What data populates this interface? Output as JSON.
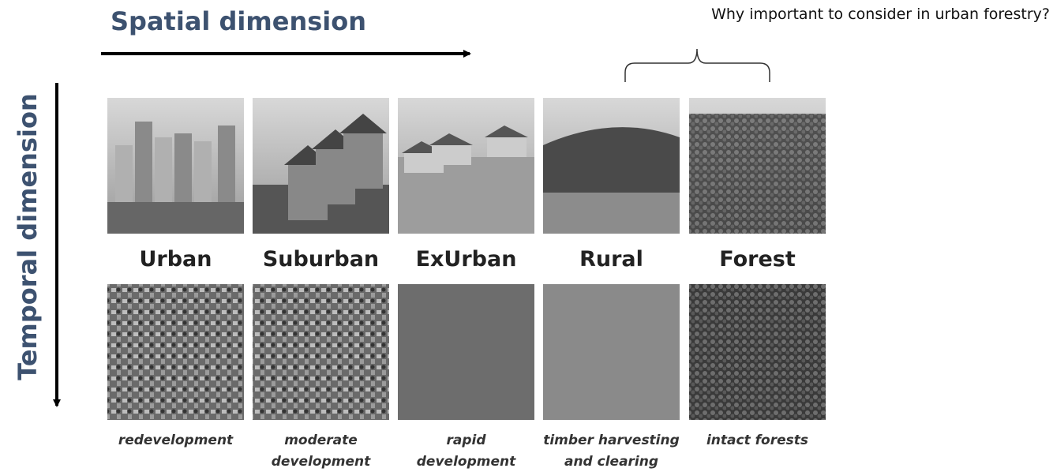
{
  "header": {
    "spatial_axis": "Spatial dimension",
    "temporal_axis": "Temporal dimension",
    "question": "Why important to consider in urban forestry?"
  },
  "columns": [
    {
      "label": "Urban",
      "caption": [
        "redevelopment"
      ]
    },
    {
      "label": "Suburban",
      "caption": [
        "moderate",
        "development"
      ]
    },
    {
      "label": "ExUrban",
      "caption": [
        "rapid",
        "development"
      ]
    },
    {
      "label": "Rural",
      "caption": [
        "timber harvesting",
        "and clearing"
      ]
    },
    {
      "label": "Forest",
      "caption": [
        "intact forests"
      ]
    }
  ]
}
